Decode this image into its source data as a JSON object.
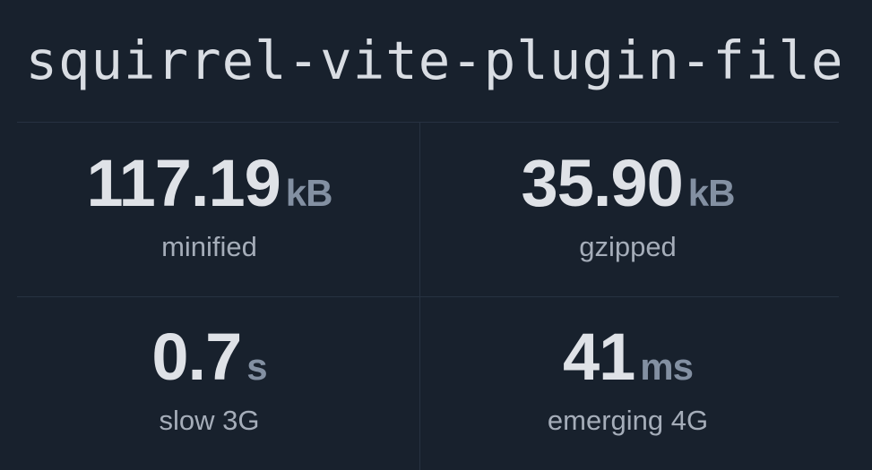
{
  "package_name": "squirrel-vite-plugin-file",
  "stats": [
    {
      "value": "117.19",
      "unit": "kB",
      "label": "minified"
    },
    {
      "value": "35.90",
      "unit": "kB",
      "label": "gzipped"
    },
    {
      "value": "0.7",
      "unit": "s",
      "label": "slow 3G"
    },
    {
      "value": "41",
      "unit": "ms",
      "label": "emerging 4G"
    }
  ],
  "colors": {
    "background": "#18212d",
    "value": "#dfe2e7",
    "unit": "#8390a2",
    "label": "#a5adb9"
  }
}
